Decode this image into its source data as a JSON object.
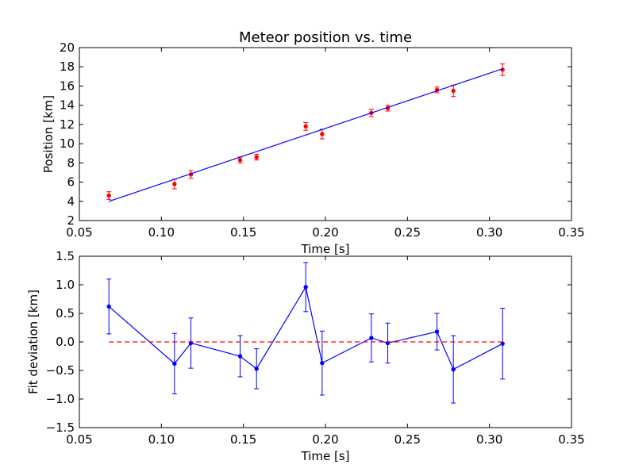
{
  "chart_data": [
    {
      "type": "scatter",
      "title": "Meteor position vs. time",
      "xlabel": "Time [s]",
      "ylabel": "Position [km]",
      "xlim": [
        0.05,
        0.35
      ],
      "ylim": [
        2,
        20
      ],
      "x_ticks": [
        "0.05",
        "0.10",
        "0.15",
        "0.20",
        "0.25",
        "0.30",
        "0.35"
      ],
      "y_ticks": [
        "2",
        "4",
        "6",
        "8",
        "10",
        "12",
        "14",
        "16",
        "18",
        "20"
      ],
      "grid": false,
      "legend": "none",
      "series": [
        {
          "kind": "errorbar-points",
          "color": "#ff0000",
          "x": [
            0.068,
            0.108,
            0.118,
            0.148,
            0.158,
            0.188,
            0.198,
            0.228,
            0.238,
            0.268,
            0.278,
            0.308
          ],
          "y": [
            4.6,
            5.8,
            6.8,
            8.3,
            8.6,
            11.8,
            11.0,
            13.2,
            13.7,
            15.6,
            15.5,
            17.7
          ],
          "yerr": [
            0.4,
            0.5,
            0.4,
            0.3,
            0.3,
            0.4,
            0.5,
            0.4,
            0.3,
            0.3,
            0.6,
            0.6
          ]
        },
        {
          "kind": "fit-line",
          "color": "#0000ff",
          "x": [
            0.068,
            0.308
          ],
          "y": [
            4.0,
            17.8
          ]
        }
      ]
    },
    {
      "type": "line",
      "title": "",
      "xlabel": "Time [s]",
      "ylabel": "Fit deviation [km]",
      "xlim": [
        0.05,
        0.35
      ],
      "ylim": [
        -1.5,
        1.5
      ],
      "x_ticks": [
        "0.05",
        "0.10",
        "0.15",
        "0.20",
        "0.25",
        "0.30",
        "0.35"
      ],
      "y_ticks": [
        "−1.5",
        "−1.0",
        "−0.5",
        "0.0",
        "0.5",
        "1.0",
        "1.5"
      ],
      "grid": false,
      "legend": "none",
      "series": [
        {
          "kind": "errorbar-line",
          "color": "#0000ff",
          "x": [
            0.068,
            0.108,
            0.118,
            0.148,
            0.158,
            0.188,
            0.198,
            0.228,
            0.238,
            0.268,
            0.278,
            0.308
          ],
          "y": [
            0.62,
            -0.38,
            -0.02,
            -0.25,
            -0.47,
            0.96,
            -0.37,
            0.07,
            -0.02,
            0.18,
            -0.48,
            -0.03
          ],
          "yerr": [
            0.48,
            0.53,
            0.44,
            0.36,
            0.35,
            0.43,
            0.56,
            0.42,
            0.35,
            0.32,
            0.59,
            0.62
          ]
        },
        {
          "kind": "zero-line",
          "color": "#ff0000",
          "dashed": true,
          "x": [
            0.068,
            0.308
          ],
          "y": [
            0.0,
            0.0
          ]
        }
      ]
    }
  ]
}
